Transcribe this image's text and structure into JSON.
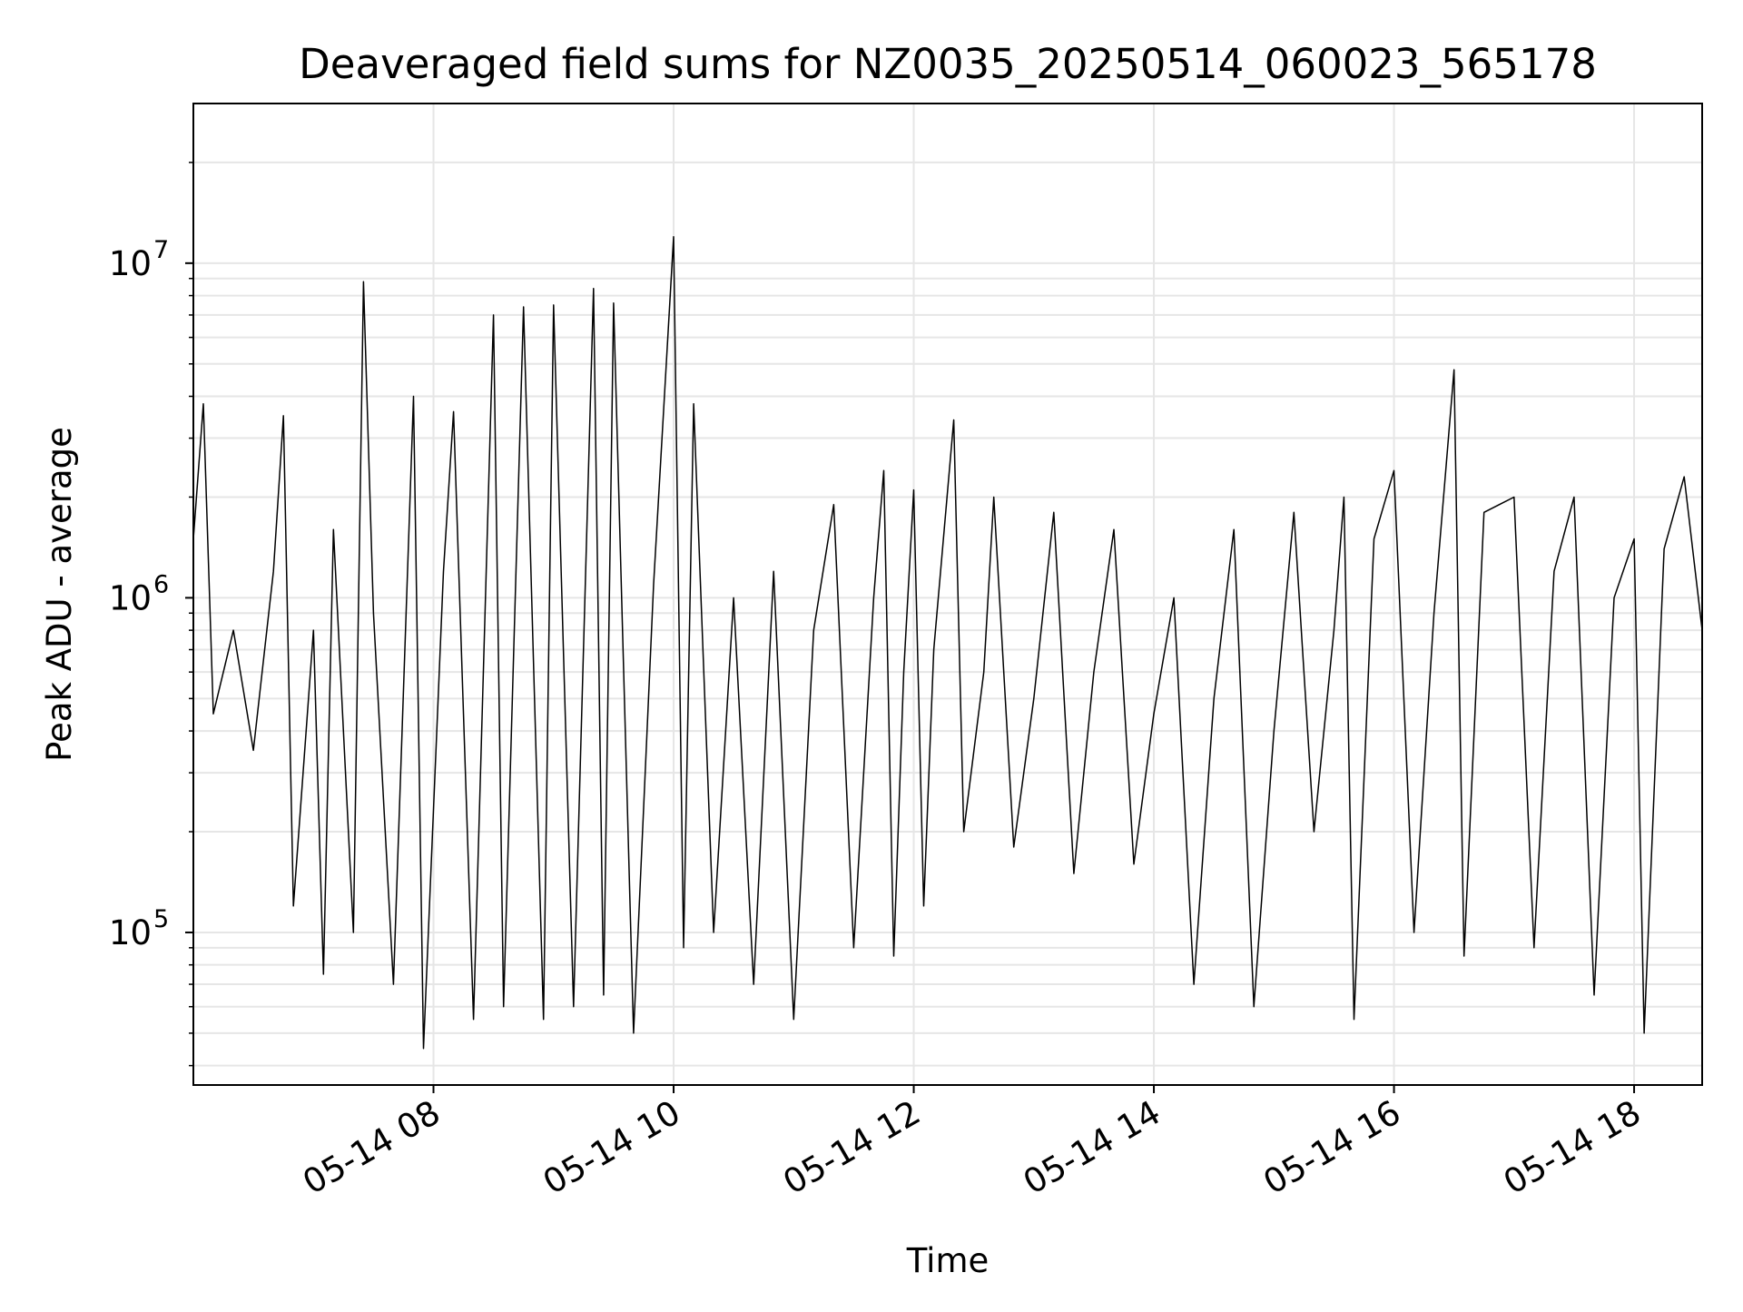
{
  "chart_data": {
    "type": "line",
    "title": "Deaveraged field sums for NZ0035_20250514_060023_565178",
    "xlabel": "Time",
    "ylabel": "Peak ADU - average",
    "x_axis": "time",
    "y_scale": "log",
    "grid": true,
    "line_color": "#000000",
    "grid_color": "#e6e6e6",
    "xlim": [
      "2025-05-14 06:00",
      "2025-05-14 18:34"
    ],
    "ylim": [
      35000,
      30000000
    ],
    "x_ticks": [
      {
        "value": "2025-05-14 08:00",
        "label": "05-14 08"
      },
      {
        "value": "2025-05-14 10:00",
        "label": "05-14 10"
      },
      {
        "value": "2025-05-14 12:00",
        "label": "05-14 12"
      },
      {
        "value": "2025-05-14 14:00",
        "label": "05-14 14"
      },
      {
        "value": "2025-05-14 16:00",
        "label": "05-14 16"
      },
      {
        "value": "2025-05-14 18:00",
        "label": "05-14 18"
      }
    ],
    "y_ticks": [
      {
        "value": 100000,
        "base": "10",
        "exponent": "5"
      },
      {
        "value": 1000000,
        "base": "10",
        "exponent": "6"
      },
      {
        "value": 10000000,
        "base": "10",
        "exponent": "7"
      }
    ],
    "series": [
      {
        "data": [
          [
            "2025-05-14 06:00",
            1500000
          ],
          [
            "2025-05-14 06:05",
            3800000
          ],
          [
            "2025-05-14 06:10",
            450000
          ],
          [
            "2025-05-14 06:20",
            800000
          ],
          [
            "2025-05-14 06:30",
            350000
          ],
          [
            "2025-05-14 06:40",
            1200000
          ],
          [
            "2025-05-14 06:45",
            3500000
          ],
          [
            "2025-05-14 06:50",
            120000
          ],
          [
            "2025-05-14 07:00",
            800000
          ],
          [
            "2025-05-14 07:05",
            75000
          ],
          [
            "2025-05-14 07:10",
            1600000
          ],
          [
            "2025-05-14 07:20",
            100000
          ],
          [
            "2025-05-14 07:25",
            8800000
          ],
          [
            "2025-05-14 07:30",
            900000
          ],
          [
            "2025-05-14 07:40",
            70000
          ],
          [
            "2025-05-14 07:50",
            4000000
          ],
          [
            "2025-05-14 07:55",
            45000
          ],
          [
            "2025-05-14 08:05",
            1200000
          ],
          [
            "2025-05-14 08:10",
            3600000
          ],
          [
            "2025-05-14 08:20",
            55000
          ],
          [
            "2025-05-14 08:30",
            7000000
          ],
          [
            "2025-05-14 08:35",
            60000
          ],
          [
            "2025-05-14 08:45",
            7400000
          ],
          [
            "2025-05-14 08:55",
            55000
          ],
          [
            "2025-05-14 09:00",
            7500000
          ],
          [
            "2025-05-14 09:10",
            60000
          ],
          [
            "2025-05-14 09:20",
            8400000
          ],
          [
            "2025-05-14 09:25",
            65000
          ],
          [
            "2025-05-14 09:30",
            7600000
          ],
          [
            "2025-05-14 09:40",
            50000
          ],
          [
            "2025-05-14 09:50",
            1100000
          ],
          [
            "2025-05-14 10:00",
            12000000
          ],
          [
            "2025-05-14 10:05",
            90000
          ],
          [
            "2025-05-14 10:10",
            3800000
          ],
          [
            "2025-05-14 10:20",
            100000
          ],
          [
            "2025-05-14 10:30",
            1000000
          ],
          [
            "2025-05-14 10:40",
            70000
          ],
          [
            "2025-05-14 10:50",
            1200000
          ],
          [
            "2025-05-14 11:00",
            55000
          ],
          [
            "2025-05-14 11:10",
            800000
          ],
          [
            "2025-05-14 11:20",
            1900000
          ],
          [
            "2025-05-14 11:30",
            90000
          ],
          [
            "2025-05-14 11:40",
            1000000
          ],
          [
            "2025-05-14 11:45",
            2400000
          ],
          [
            "2025-05-14 11:50",
            85000
          ],
          [
            "2025-05-14 11:55",
            600000
          ],
          [
            "2025-05-14 12:00",
            2100000
          ],
          [
            "2025-05-14 12:05",
            120000
          ],
          [
            "2025-05-14 12:10",
            700000
          ],
          [
            "2025-05-14 12:20",
            3400000
          ],
          [
            "2025-05-14 12:25",
            200000
          ],
          [
            "2025-05-14 12:35",
            600000
          ],
          [
            "2025-05-14 12:40",
            2000000
          ],
          [
            "2025-05-14 12:50",
            180000
          ],
          [
            "2025-05-14 13:00",
            500000
          ],
          [
            "2025-05-14 13:10",
            1800000
          ],
          [
            "2025-05-14 13:20",
            150000
          ],
          [
            "2025-05-14 13:30",
            600000
          ],
          [
            "2025-05-14 13:40",
            1600000
          ],
          [
            "2025-05-14 13:50",
            160000
          ],
          [
            "2025-05-14 14:00",
            450000
          ],
          [
            "2025-05-14 14:10",
            1000000
          ],
          [
            "2025-05-14 14:20",
            70000
          ],
          [
            "2025-05-14 14:30",
            500000
          ],
          [
            "2025-05-14 14:40",
            1600000
          ],
          [
            "2025-05-14 14:50",
            60000
          ],
          [
            "2025-05-14 15:00",
            400000
          ],
          [
            "2025-05-14 15:10",
            1800000
          ],
          [
            "2025-05-14 15:20",
            200000
          ],
          [
            "2025-05-14 15:30",
            800000
          ],
          [
            "2025-05-14 15:35",
            2000000
          ],
          [
            "2025-05-14 15:40",
            55000
          ],
          [
            "2025-05-14 15:50",
            1500000
          ],
          [
            "2025-05-14 16:00",
            2400000
          ],
          [
            "2025-05-14 16:10",
            100000
          ],
          [
            "2025-05-14 16:20",
            900000
          ],
          [
            "2025-05-14 16:30",
            4800000
          ],
          [
            "2025-05-14 16:35",
            85000
          ],
          [
            "2025-05-14 16:45",
            1800000
          ],
          [
            "2025-05-14 17:00",
            2000000
          ],
          [
            "2025-05-14 17:10",
            90000
          ],
          [
            "2025-05-14 17:20",
            1200000
          ],
          [
            "2025-05-14 17:30",
            2000000
          ],
          [
            "2025-05-14 17:40",
            65000
          ],
          [
            "2025-05-14 17:50",
            1000000
          ],
          [
            "2025-05-14 18:00",
            1500000
          ],
          [
            "2025-05-14 18:05",
            50000
          ],
          [
            "2025-05-14 18:15",
            1400000
          ],
          [
            "2025-05-14 18:25",
            2300000
          ],
          [
            "2025-05-14 18:34",
            800000
          ]
        ]
      }
    ]
  }
}
